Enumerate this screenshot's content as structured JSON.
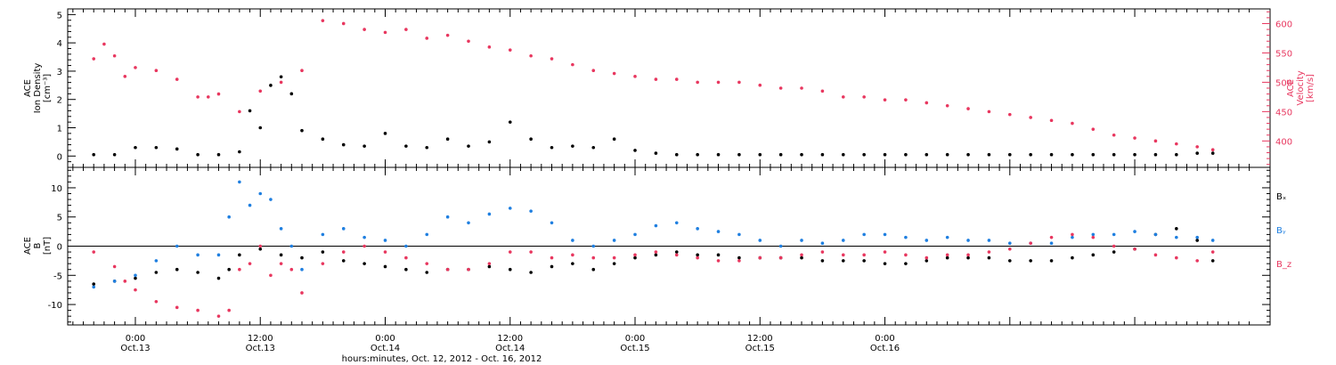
{
  "chart_data": [
    {
      "type": "scatter",
      "panel": "plasma",
      "ylabel_lines": [
        "ACE",
        "Ion Density",
        "[cm⁻³]"
      ],
      "y2label_lines": [
        "ACE",
        "Velocity",
        "[km/s]"
      ],
      "ylim": [
        -0.4,
        5.2
      ],
      "yticks": [
        0,
        1,
        2,
        3,
        4,
        5
      ],
      "y2lim": [
        355,
        625
      ],
      "y2ticks": [
        400,
        450,
        500,
        550,
        600
      ],
      "colors": {
        "density": "#000000",
        "velocity": "#e8375f"
      },
      "series": [
        {
          "name": "",
          "key": "density",
          "axis": "left",
          "x": [
            -4,
            -2,
            0,
            2,
            4,
            6,
            8,
            10,
            11,
            12,
            13,
            14,
            15,
            16,
            18,
            20,
            22,
            24,
            26,
            28,
            30,
            32,
            34,
            36,
            38,
            40,
            42,
            44,
            46,
            48,
            50,
            52,
            54,
            56,
            58,
            60,
            62,
            64,
            66,
            68,
            70,
            72,
            74,
            76,
            78,
            80,
            82,
            84,
            86,
            88,
            90,
            92,
            94,
            96,
            98,
            100,
            102,
            103.5
          ],
          "y": [
            0.05,
            0.05,
            0.3,
            0.3,
            0.25,
            0.05,
            0.05,
            0.15,
            1.6,
            1.0,
            2.5,
            2.8,
            2.2,
            0.9,
            0.6,
            0.4,
            0.35,
            0.8,
            0.35,
            0.3,
            0.6,
            0.35,
            0.5,
            1.2,
            0.6,
            0.3,
            0.35,
            0.3,
            0.6,
            0.2,
            0.1,
            0.05,
            0.05,
            0.05,
            0.05,
            0.05,
            0.05,
            0.05,
            0.05,
            0.05,
            0.05,
            0.05,
            0.05,
            0.05,
            0.05,
            0.05,
            0.05,
            0.05,
            0.05,
            0.05,
            0.05,
            0.05,
            0.05,
            0.05,
            0.05,
            0.05,
            0.1,
            0.1
          ]
        },
        {
          "name": "",
          "key": "velocity",
          "axis": "right",
          "x": [
            -4,
            -3,
            -2,
            -1,
            0,
            2,
            4,
            6,
            7,
            8,
            10,
            12,
            14,
            16,
            18,
            20,
            22,
            24,
            26,
            28,
            30,
            32,
            34,
            36,
            38,
            40,
            42,
            44,
            46,
            48,
            50,
            52,
            54,
            56,
            58,
            60,
            62,
            64,
            66,
            68,
            70,
            72,
            74,
            76,
            78,
            80,
            82,
            84,
            86,
            88,
            90,
            92,
            94,
            96,
            98,
            100,
            102,
            103.5
          ],
          "y": [
            540,
            565,
            545,
            510,
            525,
            520,
            505,
            475,
            475,
            480,
            450,
            485,
            500,
            520,
            605,
            600,
            590,
            585,
            590,
            575,
            580,
            570,
            560,
            555,
            545,
            540,
            530,
            520,
            515,
            510,
            505,
            505,
            500,
            500,
            500,
            495,
            490,
            490,
            485,
            475,
            475,
            470,
            470,
            465,
            460,
            455,
            450,
            445,
            440,
            435,
            430,
            420,
            410,
            405,
            400,
            395,
            390,
            385
          ]
        }
      ]
    },
    {
      "type": "scatter",
      "panel": "magnetic",
      "ylabel_lines": [
        "ACE",
        "B",
        "[nT]"
      ],
      "ylim": [
        -13.5,
        13.5
      ],
      "yticks": [
        -10,
        -5,
        0,
        5,
        10
      ],
      "colors": {
        "Bx": "#000000",
        "By": "#1f7fe0",
        "Bz": "#e8375f"
      },
      "series": [
        {
          "name": "Bₓ",
          "key": "Bx",
          "x": [
            -4,
            -2,
            0,
            2,
            4,
            6,
            8,
            9,
            10,
            12,
            14,
            16,
            18,
            20,
            22,
            24,
            26,
            28,
            30,
            32,
            34,
            36,
            38,
            40,
            42,
            44,
            46,
            48,
            50,
            52,
            54,
            56,
            58,
            60,
            62,
            64,
            66,
            68,
            70,
            72,
            74,
            76,
            78,
            80,
            82,
            84,
            86,
            88,
            90,
            92,
            94,
            96,
            98,
            100,
            102,
            103.5
          ],
          "y": [
            -6.5,
            -6,
            -5.5,
            -4.5,
            -4,
            -4.5,
            -5.5,
            -4,
            -1.5,
            -0.5,
            -1.5,
            -2,
            -1,
            -2.5,
            -3,
            -3.5,
            -4,
            -4.5,
            -4,
            -4,
            -3.5,
            -4,
            -4.5,
            -3.5,
            -3,
            -4,
            -3,
            -2,
            -1.5,
            -1,
            -1.5,
            -1.5,
            -2,
            -2,
            -2,
            -2,
            -2.5,
            -2.5,
            -2.5,
            -3,
            -3,
            -2.5,
            -2,
            -2,
            -2,
            -2.5,
            -2.5,
            -2.5,
            -2,
            -1.5,
            -1,
            -0.5,
            2,
            3,
            1,
            -2.5
          ]
        },
        {
          "name": "Bᵧ",
          "key": "By",
          "x": [
            -4,
            -2,
            0,
            2,
            4,
            6,
            8,
            9,
            10,
            11,
            12,
            13,
            14,
            15,
            16,
            18,
            20,
            22,
            24,
            26,
            28,
            30,
            32,
            34,
            36,
            38,
            40,
            42,
            44,
            46,
            48,
            50,
            52,
            54,
            56,
            58,
            60,
            62,
            64,
            66,
            68,
            70,
            72,
            74,
            76,
            78,
            80,
            82,
            84,
            86,
            88,
            90,
            92,
            94,
            96,
            98,
            100,
            102,
            103.5
          ],
          "y": [
            -7,
            -6,
            -5,
            -2.5,
            0,
            -1.5,
            -1.5,
            5,
            11,
            7,
            9,
            8,
            3,
            0,
            -4,
            2,
            3,
            1.5,
            1,
            0,
            2,
            5,
            4,
            5.5,
            6.5,
            6,
            4,
            1,
            0,
            1,
            2,
            3.5,
            4,
            3,
            2.5,
            2,
            1,
            0,
            1,
            0.5,
            1,
            2,
            2,
            1.5,
            1,
            1.5,
            1,
            1,
            0.5,
            0.5,
            0.5,
            1.5,
            2,
            2,
            2.5,
            2,
            1.5,
            1.5,
            1
          ]
        },
        {
          "name": "B_z",
          "key": "Bz",
          "x": [
            -4,
            -2,
            -1,
            0,
            2,
            4,
            6,
            8,
            9,
            10,
            11,
            12,
            13,
            14,
            15,
            16,
            18,
            20,
            22,
            24,
            26,
            28,
            30,
            32,
            34,
            36,
            38,
            40,
            42,
            44,
            46,
            48,
            50,
            52,
            54,
            56,
            58,
            60,
            62,
            64,
            66,
            68,
            70,
            72,
            74,
            76,
            78,
            80,
            82,
            84,
            86,
            88,
            90,
            92,
            94,
            96,
            98,
            100,
            102,
            103.5
          ],
          "y": [
            -1,
            -3.5,
            -6,
            -7.5,
            -9.5,
            -10.5,
            -11,
            -12,
            -11,
            -4,
            -3,
            0,
            -5,
            -3,
            -4,
            -8,
            -3,
            -1,
            0,
            -1,
            -2,
            -3,
            -4,
            -4,
            -3,
            -1,
            -1,
            -2,
            -1.5,
            -2,
            -2,
            -1.5,
            -1,
            -1.5,
            -2,
            -2.5,
            -2.5,
            -2,
            -2,
            -1.5,
            -1,
            -1.5,
            -1.5,
            -1,
            -1.5,
            -2,
            -1.5,
            -1.5,
            -1,
            -0.5,
            0.5,
            1.5,
            2,
            1.5,
            0,
            -0.5,
            -1.5,
            -2,
            -2.5,
            -1
          ]
        }
      ]
    }
  ],
  "x_axis": {
    "xlim": [
      -6.5,
      109
    ],
    "ticks": [
      0,
      12,
      24,
      36,
      48,
      60,
      72,
      84,
      96
    ],
    "tick_labels": [
      [
        "0:00",
        "Oct.13"
      ],
      [
        "12:00",
        "Oct.13"
      ],
      [
        "0:00",
        "Oct.14"
      ],
      [
        "12:00",
        "Oct.14"
      ],
      [
        "0:00",
        "Oct.15"
      ],
      [
        "12:00",
        "Oct.15"
      ],
      [
        "0:00",
        "Oct.16"
      ]
    ],
    "labeled_ticks": [
      0,
      12,
      24,
      36,
      48,
      60,
      72
    ],
    "xlabel": "hours:minutes, Oct. 12, 2012 - Oct. 16, 2012"
  }
}
